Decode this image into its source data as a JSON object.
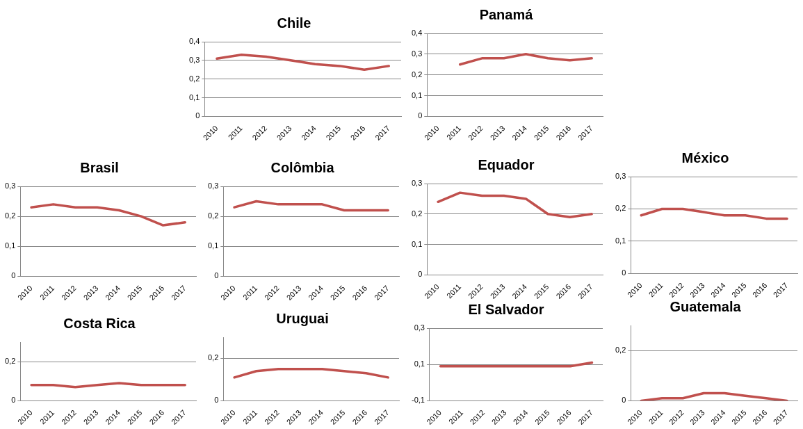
{
  "chart_data": [
    {
      "type": "line",
      "title": "Chile",
      "categories": [
        "2010",
        "2011",
        "2012",
        "2013",
        "2014",
        "2015",
        "2016",
        "2017"
      ],
      "series": [
        {
          "color": "#c0504d",
          "values": [
            0.31,
            0.33,
            0.32,
            0.3,
            0.28,
            0.27,
            0.25,
            0.27
          ]
        }
      ],
      "ylim": [
        0,
        0.4
      ],
      "yticks": [
        {
          "value": 0,
          "label": "0"
        },
        {
          "value": 0.1,
          "label": "0,1"
        },
        {
          "value": 0.2,
          "label": "0,2"
        },
        {
          "value": 0.3,
          "label": "0,3"
        },
        {
          "value": 0.4,
          "label": "0,4"
        }
      ],
      "grid": "y",
      "legend": false,
      "marker": "none"
    },
    {
      "type": "line",
      "title": "Panamá",
      "categories": [
        "2010",
        "2011",
        "2012",
        "2013",
        "2014",
        "2015",
        "2016",
        "2017"
      ],
      "series": [
        {
          "color": "#c0504d",
          "values": [
            null,
            0.25,
            0.28,
            0.28,
            0.3,
            0.28,
            0.27,
            0.28
          ]
        }
      ],
      "ylim": [
        0,
        0.4
      ],
      "yticks": [
        {
          "value": 0,
          "label": "0"
        },
        {
          "value": 0.1,
          "label": "0,1"
        },
        {
          "value": 0.2,
          "label": "0,2"
        },
        {
          "value": 0.3,
          "label": "0,3"
        },
        {
          "value": 0.4,
          "label": "0,4"
        }
      ],
      "grid": "y",
      "legend": false,
      "marker": "none"
    },
    {
      "type": "line",
      "title": "Brasil",
      "categories": [
        "2010",
        "2011",
        "2012",
        "2013",
        "2014",
        "2015",
        "2016",
        "2017"
      ],
      "series": [
        {
          "color": "#c0504d",
          "values": [
            0.23,
            0.24,
            0.23,
            0.23,
            0.22,
            0.2,
            0.17,
            0.18
          ]
        }
      ],
      "ylim": [
        0,
        0.3
      ],
      "yticks": [
        {
          "value": 0,
          "label": "0"
        },
        {
          "value": 0.1,
          "label": "0,1"
        },
        {
          "value": 0.2,
          "label": "0,2"
        },
        {
          "value": 0.3,
          "label": "0,3"
        }
      ],
      "grid": "y",
      "legend": false,
      "marker": "none"
    },
    {
      "type": "line",
      "title": "Colômbia",
      "categories": [
        "2010",
        "2011",
        "2012",
        "2013",
        "2014",
        "2015",
        "2016",
        "2017"
      ],
      "series": [
        {
          "color": "#c0504d",
          "values": [
            0.23,
            0.25,
            0.24,
            0.24,
            0.24,
            0.22,
            0.22,
            0.22
          ]
        }
      ],
      "ylim": [
        0,
        0.3
      ],
      "yticks": [
        {
          "value": 0,
          "label": "0"
        },
        {
          "value": 0.1,
          "label": "0,1"
        },
        {
          "value": 0.2,
          "label": "0,2"
        },
        {
          "value": 0.3,
          "label": "0,3"
        }
      ],
      "grid": "y",
      "legend": false,
      "marker": "none"
    },
    {
      "type": "line",
      "title": "Equador",
      "categories": [
        "2010",
        "2011",
        "2012",
        "2013",
        "2014",
        "2015",
        "2016",
        "2017"
      ],
      "series": [
        {
          "color": "#c0504d",
          "values": [
            0.24,
            0.27,
            0.26,
            0.26,
            0.25,
            0.2,
            0.19,
            0.2
          ]
        }
      ],
      "ylim": [
        0,
        0.3
      ],
      "yticks": [
        {
          "value": 0,
          "label": "0"
        },
        {
          "value": 0.1,
          "label": "0,1"
        },
        {
          "value": 0.2,
          "label": "0,2"
        },
        {
          "value": 0.3,
          "label": "0,3"
        }
      ],
      "grid": "y",
      "legend": false,
      "marker": "none"
    },
    {
      "type": "line",
      "title": "México",
      "categories": [
        "2010",
        "2011",
        "2012",
        "2013",
        "2014",
        "2015",
        "2016",
        "2017"
      ],
      "series": [
        {
          "color": "#c0504d",
          "values": [
            0.18,
            0.2,
            0.2,
            0.19,
            0.18,
            0.18,
            0.17,
            0.17
          ]
        }
      ],
      "ylim": [
        0,
        0.3
      ],
      "yticks": [
        {
          "value": 0,
          "label": "0"
        },
        {
          "value": 0.1,
          "label": "0,1"
        },
        {
          "value": 0.2,
          "label": "0,2"
        },
        {
          "value": 0.3,
          "label": "0,3"
        }
      ],
      "grid": "y",
      "legend": false,
      "marker": "none"
    },
    {
      "type": "line",
      "title": "Costa Rica",
      "categories": [
        "2010",
        "2011",
        "2012",
        "2013",
        "2014",
        "2015",
        "2016",
        "2017"
      ],
      "series": [
        {
          "color": "#c0504d",
          "values": [
            0.08,
            0.08,
            0.07,
            0.08,
            0.09,
            0.08,
            0.08,
            0.08
          ]
        }
      ],
      "ylim": [
        0,
        0.3
      ],
      "yticks": [
        {
          "value": 0,
          "label": "0"
        },
        {
          "value": 0.2,
          "label": "0,2"
        }
      ],
      "grid": "y",
      "legend": false,
      "marker": "none"
    },
    {
      "type": "line",
      "title": "Uruguai",
      "categories": [
        "2010",
        "2011",
        "2012",
        "2013",
        "2014",
        "2015",
        "2016",
        "2017"
      ],
      "series": [
        {
          "color": "#c0504d",
          "values": [
            0.11,
            0.14,
            0.15,
            0.15,
            0.15,
            0.14,
            0.13,
            0.11
          ]
        }
      ],
      "ylim": [
        0,
        0.3
      ],
      "yticks": [
        {
          "value": 0,
          "label": "0"
        },
        {
          "value": 0.2,
          "label": "0,2"
        }
      ],
      "grid": "y",
      "legend": false,
      "marker": "none"
    },
    {
      "type": "line",
      "title": "El Salvador",
      "categories": [
        "2010",
        "2011",
        "2012",
        "2013",
        "2014",
        "2015",
        "2016",
        "2017"
      ],
      "series": [
        {
          "color": "#c0504d",
          "values": [
            0.09,
            0.09,
            0.09,
            0.09,
            0.09,
            0.09,
            0.09,
            0.11
          ]
        }
      ],
      "ylim": [
        -0.1,
        0.3
      ],
      "yticks": [
        {
          "value": -0.1,
          "label": "-0,1"
        },
        {
          "value": 0.1,
          "label": "0,1"
        },
        {
          "value": 0.3,
          "label": "0,3"
        }
      ],
      "grid": "y",
      "legend": false,
      "marker": "none"
    },
    {
      "type": "line",
      "title": "Guatemala",
      "categories": [
        "2010",
        "2011",
        "2012",
        "2013",
        "2014",
        "2015",
        "2016",
        "2017"
      ],
      "series": [
        {
          "color": "#c0504d",
          "values": [
            0,
            0.01,
            0.01,
            0.03,
            0.03,
            0.02,
            0.01,
            0
          ]
        }
      ],
      "ylim": [
        0,
        0.3
      ],
      "yticks": [
        {
          "value": 0,
          "label": "0"
        },
        {
          "value": 0.2,
          "label": "0,2"
        }
      ],
      "grid": "y",
      "legend": false,
      "marker": "none"
    }
  ]
}
